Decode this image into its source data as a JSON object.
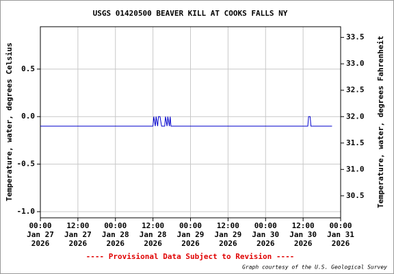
{
  "chart_data": {
    "type": "line",
    "title": "USGS 01420500 BEAVER KILL AT COOKS FALLS NY",
    "y_label": "Temperature, water, degrees Celsius",
    "y2_label": "Temperature, water, degrees Fahrenheit",
    "footer": "---- Provisional Data Subject to Revision ----",
    "credit": "Graph courtesy of the U.S. Geological Survey",
    "grid": true,
    "xlim": [
      "2026-01-27T00:00",
      "2026-01-31T00:00"
    ],
    "xticks": [
      {
        "value": "2026-01-27T00:00",
        "label": [
          "00:00",
          "Jan 27",
          "2026"
        ]
      },
      {
        "value": "2026-01-27T12:00",
        "label": [
          "12:00",
          "Jan 27",
          "2026"
        ]
      },
      {
        "value": "2026-01-28T00:00",
        "label": [
          "00:00",
          "Jan 28",
          "2026"
        ]
      },
      {
        "value": "2026-01-28T12:00",
        "label": [
          "12:00",
          "Jan 28",
          "2026"
        ]
      },
      {
        "value": "2026-01-29T00:00",
        "label": [
          "00:00",
          "Jan 29",
          "2026"
        ]
      },
      {
        "value": "2026-01-29T12:00",
        "label": [
          "12:00",
          "Jan 29",
          "2026"
        ]
      },
      {
        "value": "2026-01-30T00:00",
        "label": [
          "00:00",
          "Jan 30",
          "2026"
        ]
      },
      {
        "value": "2026-01-30T12:00",
        "label": [
          "12:00",
          "Jan 30",
          "2026"
        ]
      },
      {
        "value": "2026-01-31T00:00",
        "label": [
          "00:00",
          "Jan 31",
          "2026"
        ]
      }
    ],
    "ylim": [
      -1.065,
      0.946
    ],
    "yticks": [
      0.5,
      {
        "value": 0,
        "label": "0.0"
      },
      -0.5,
      {
        "value": -1,
        "label": "-1.0"
      }
    ],
    "y2lim": [
      30.083,
      33.703
    ],
    "y2ticks": [
      33.5,
      {
        "value": 33,
        "label": "33.0"
      },
      32.5,
      {
        "value": 32,
        "label": "32.0"
      },
      31.5,
      {
        "value": 31,
        "label": "31.0"
      },
      30.5
    ],
    "x": [
      "2026-01-27T00:00",
      "2026-01-28T12:00",
      "2026-01-28T12:15",
      "2026-01-28T12:45",
      "2026-01-28T13:00",
      "2026-01-28T13:30",
      "2026-01-28T13:45",
      "2026-01-28T14:15",
      "2026-01-28T14:45",
      "2026-01-28T15:45",
      "2026-01-28T16:00",
      "2026-01-28T16:30",
      "2026-01-28T16:45",
      "2026-01-28T17:15",
      "2026-01-28T17:30",
      "2026-01-28T17:45",
      "2026-01-30T13:30",
      "2026-01-30T13:45",
      "2026-01-30T14:15",
      "2026-01-30T14:30",
      "2026-01-30T21:15"
    ],
    "series": [
      {
        "color": "#0000cc",
        "values": [
          -0.1,
          -0.1,
          0.0,
          -0.1,
          0.0,
          -0.1,
          0.0,
          0.0,
          -0.1,
          -0.1,
          0.0,
          -0.1,
          0.0,
          -0.1,
          0.0,
          -0.1,
          -0.1,
          0.0,
          0.0,
          -0.1,
          -0.1
        ]
      }
    ]
  }
}
